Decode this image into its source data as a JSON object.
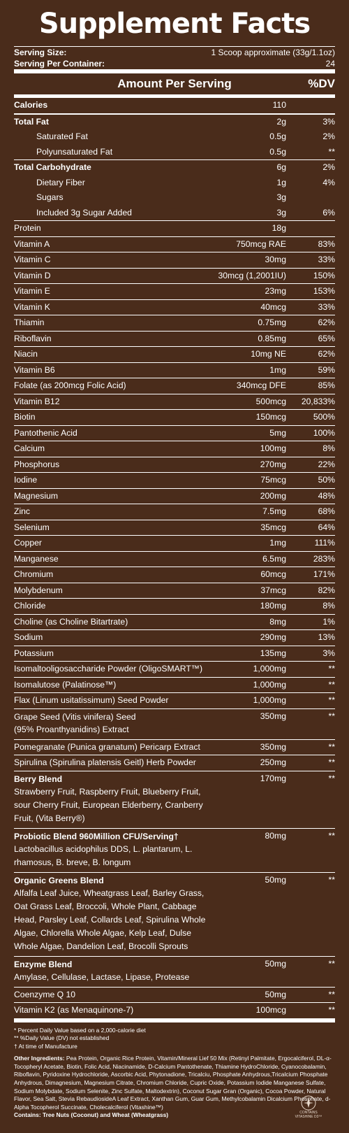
{
  "title": "Supplement Facts",
  "serving": {
    "size_label": "Serving Size:",
    "size_value": "1 Scoop approximate (33g/1.1oz)",
    "per_container_label": "Serving Per Container:",
    "per_container_value": "24"
  },
  "header": {
    "amount": "Amount Per Serving",
    "dv": "%DV"
  },
  "rows": [
    {
      "name": "Calories",
      "amount": "110",
      "dv": "",
      "bold": true
    },
    {
      "name": "Total Fat",
      "amount": "2g",
      "dv": "3%",
      "bold": true,
      "thick": true
    },
    {
      "name": "Saturated Fat",
      "amount": "0.5g",
      "dv": "2%",
      "indent": true,
      "noborder": true
    },
    {
      "name": "Polyunsaturated Fat",
      "amount": "0.5g",
      "dv": "**",
      "indent": true,
      "noborder": true
    },
    {
      "name": "Total Carbohydrate",
      "amount": "6g",
      "dv": "2%",
      "bold": true
    },
    {
      "name": "Dietary Fiber",
      "amount": "1g",
      "dv": "4%",
      "indent": true,
      "noborder": true
    },
    {
      "name": "Sugars",
      "amount": "3g",
      "dv": "",
      "indent": true,
      "noborder": true
    },
    {
      "name": "Included 3g Sugar Added",
      "amount": "3g",
      "dv": "6%",
      "indent": true,
      "noborder": true
    },
    {
      "name": "Protein",
      "amount": "18g",
      "dv": ""
    },
    {
      "name": "Vitamin A",
      "amount": "750mcg RAE",
      "dv": "83%"
    },
    {
      "name": "Vitamin C",
      "amount": "30mg",
      "dv": "33%"
    },
    {
      "name": "Vitamin D",
      "amount": "30mcg (1,2001IU)",
      "dv": "150%"
    },
    {
      "name": "Vitamin E",
      "amount": "23mg",
      "dv": "153%"
    },
    {
      "name": "Vitamin K",
      "amount": "40mcg",
      "dv": "33%"
    },
    {
      "name": "Thiamin",
      "amount": "0.75mg",
      "dv": "62%"
    },
    {
      "name": "Riboflavin",
      "amount": "0.85mg",
      "dv": "65%"
    },
    {
      "name": "Niacin",
      "amount": "10mg NE",
      "dv": "62%"
    },
    {
      "name": "Vitamin B6",
      "amount": "1mg",
      "dv": "59%"
    },
    {
      "name": "Folate (as 200mcg Folic Acid)",
      "amount": "340mcg DFE",
      "dv": "85%"
    },
    {
      "name": "Vitamin B12",
      "amount": "500mcg",
      "dv": "20,833%"
    },
    {
      "name": "Biotin",
      "amount": "150mcg",
      "dv": "500%"
    },
    {
      "name": "Pantothenic Acid",
      "amount": "5mg",
      "dv": "100%"
    },
    {
      "name": "Calcium",
      "amount": "100mg",
      "dv": "8%"
    },
    {
      "name": "Phosphorus",
      "amount": "270mg",
      "dv": "22%"
    },
    {
      "name": "Iodine",
      "amount": "75mcg",
      "dv": "50%"
    },
    {
      "name": "Magnesium",
      "amount": "200mg",
      "dv": "48%"
    },
    {
      "name": "Zinc",
      "amount": "7.5mg",
      "dv": "68%"
    },
    {
      "name": "Selenium",
      "amount": "35mcg",
      "dv": "64%"
    },
    {
      "name": "Copper",
      "amount": "1mg",
      "dv": "111%"
    },
    {
      "name": "Manganese",
      "amount": "6.5mg",
      "dv": "283%"
    },
    {
      "name": "Chromium",
      "amount": "60mcg",
      "dv": "171%"
    },
    {
      "name": "Molybdenum",
      "amount": "37mcg",
      "dv": "82%"
    },
    {
      "name": "Chloride",
      "amount": "180mg",
      "dv": "8%"
    },
    {
      "name": "Choline (as Choline Bitartrate)",
      "amount": "8mg",
      "dv": "1%"
    },
    {
      "name": "Sodium",
      "amount": "290mg",
      "dv": "13%"
    },
    {
      "name": "Potassium",
      "amount": "135mg",
      "dv": "3%"
    },
    {
      "name": "Isomaltooligosaccharide Powder (OligoSMART™)",
      "amount": "1,000mg",
      "dv": "**"
    },
    {
      "name": "Isomalutose (Palatinose™)",
      "amount": "1,000mg",
      "dv": "**"
    },
    {
      "name": "Flax (Linum usitatissimum) Seed Powder",
      "amount": "1,000mg",
      "dv": "**"
    },
    {
      "name": "Grape Seed (Vitis vinifera) Seed",
      "sub": "(95% Proanthyanidins) Extract",
      "amount": "350mg",
      "dv": "**"
    },
    {
      "name": "Pomegranate (Punica granatum) Pericarp Extract",
      "amount": "350mg",
      "dv": "**"
    },
    {
      "name": "Spirulina (Spirulina platensis Geitl) Herb Powder",
      "amount": "250mg",
      "dv": "**"
    },
    {
      "name": "Berry Blend",
      "sub": "Strawberry Fruit, Raspberry Fruit, Blueberry Fruit, sour Cherry Fruit, European Elderberry, Cranberry Fruit, (Vita Berry®)",
      "amount": "170mg",
      "dv": "**",
      "bold": true
    },
    {
      "name": "Probiotic Blend 960Million CFU/Serving†",
      "sub": "Lactobacillus acidophilus DDS, L. plantarum, L. rhamosus, B. breve, B. longum",
      "amount": "80mg",
      "dv": "**",
      "bold": true
    },
    {
      "name": "Organic Greens Blend",
      "sub": "Alfalfa Leaf Juice, Wheatgrass Leaf, Barley Grass, Oat Grass Leaf, Broccoli, Whole Plant, Cabbage Head, Parsley Leaf, Collards Leaf, Spirulina Whole Algae, Chlorella Whole Algae, Kelp Leaf, Dulse Whole Algae, Dandelion Leaf, Brocolli Sprouts",
      "amount": "50mg",
      "dv": "**",
      "bold": true
    },
    {
      "name": "Enzyme Blend",
      "sub": "Amylase, Cellulase, Lactase, Lipase, Protease",
      "amount": "50mg",
      "dv": "**",
      "bold": true
    },
    {
      "name": "Coenzyme Q 10",
      "amount": "50mg",
      "dv": "**"
    },
    {
      "name": "Vitamin K2 (as Menaquinone-7)",
      "amount": "100mcg",
      "dv": "**"
    }
  ],
  "footnotes": {
    "note1": "* Percent Daily Value based on a 2,000-calorie diet",
    "note2": "** %Daily Value (DV) not established",
    "note3": "† At time of Manufacture",
    "other_label": "Other Ingredients:",
    "other_text": "Pea Protein, Organic Rice Protein, Vitamin/Mineral Lief 50 Mix (Retinyl Palmitate, Ergocalciferol, DL-α-Tocopheryl Acetate, Biotin, Folic Acid, Niacinamide, D-Calcium Pantothenate, Thiamine HydroChloride, Cyanocobalamin, Riboflavin, Pyridoxine Hydrochloride, Ascorbic Acid, Phytonadione, Tricalciu, Phosphate Anhydrous,Tricalcium Phosphate Anhydrous, Dimagnesium, Magnesium Citrate, Chromium Chloride, Cupric Oxide, Potassium Iodide Manganese Sulfate, Sodium Molybdate, Sodium Selenite, Zinc Sulfate, Maltodextrin), Coconut Sugar Gran (Organic), Cocoa Powder, Natural Flavor, Sea Salt, Stevia RebaudiosideA Leaf Extract, Xanthan Gum, Guar Gum, Methylcobalamin Dicalcium Phosphate, d-Alpha Tocopherol Succinate, Cholecalciferol (Vitashine™)",
    "contains_label": "Contains:",
    "contains_text": "Tree Nuts (Coconut) and Wheat (Wheatgrass)"
  },
  "logo": {
    "line1": "CONTAINS",
    "line2": "VITASHINE D3™"
  }
}
